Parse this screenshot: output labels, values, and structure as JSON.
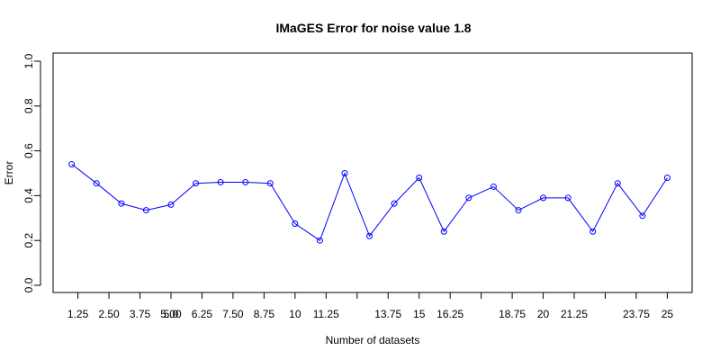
{
  "chart_data": {
    "type": "line",
    "title": "IMaGES Error for noise value 1.8",
    "xlabel": "Number of datasets",
    "ylabel": "Error",
    "ylim": [
      0,
      1
    ],
    "x_range": [
      0.25,
      26
    ],
    "y_ticks": [
      "0.0",
      "0.2",
      "0.4",
      "0.6",
      "0.8",
      "1.0"
    ],
    "x_tick_labels": [
      "1.25",
      "2.50",
      "3.75",
      "5.00",
      "5.0",
      "6.25",
      "7.50",
      "8.75",
      "10",
      "11.25",
      "13.75",
      "15",
      "16.25",
      "18.75",
      "20",
      "21.25",
      "23.75",
      "25"
    ],
    "x": [
      1,
      2,
      3,
      4,
      5,
      6,
      7,
      8,
      9,
      10,
      11,
      12,
      13,
      14,
      15,
      16,
      17,
      18,
      19,
      20,
      21,
      22,
      23,
      24,
      25
    ],
    "series": [
      {
        "values": [
          0.54,
          0.455,
          0.365,
          0.335,
          0.36,
          0.455,
          0.46,
          0.46,
          0.455,
          0.275,
          0.2,
          0.5,
          0.22,
          0.365,
          0.48,
          0.24,
          0.39,
          0.44,
          0.335,
          0.39,
          0.39,
          0.24,
          0.455,
          0.31,
          0.48
        ],
        "color": "#0000ff"
      }
    ],
    "grid": false,
    "legend": "none"
  }
}
